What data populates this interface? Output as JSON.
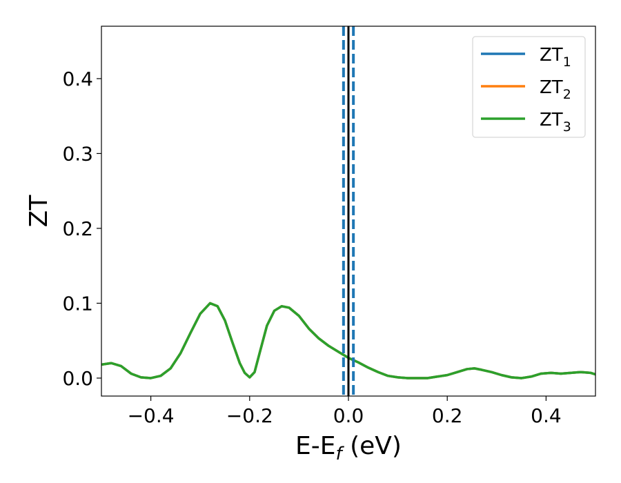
{
  "chart_data": {
    "type": "line",
    "xlabel": {
      "main": "E-E",
      "sub": "f",
      "suffix": " (eV)"
    },
    "ylabel": "ZT",
    "xlim": [
      -0.5,
      0.5
    ],
    "ylim": [
      -0.024,
      0.47
    ],
    "xticks": [
      -0.4,
      -0.2,
      0.0,
      0.2,
      0.4
    ],
    "xtick_labels": [
      "−0.4",
      "−0.2",
      "0.0",
      "0.2",
      "0.4"
    ],
    "yticks": [
      0.0,
      0.1,
      0.2,
      0.3,
      0.4
    ],
    "ytick_labels": [
      "0.0",
      "0.1",
      "0.2",
      "0.3",
      "0.4"
    ],
    "grid": false,
    "legend": "top-right",
    "series": [
      {
        "name": "ZT",
        "sub": "1",
        "color": "#1f77b4",
        "x": [
          -0.5,
          -0.48,
          -0.46,
          -0.44,
          -0.42,
          -0.4,
          -0.38,
          -0.36,
          -0.34,
          -0.32,
          -0.3,
          -0.28,
          -0.265,
          -0.25,
          -0.235,
          -0.22,
          -0.21,
          -0.2,
          -0.19,
          -0.18,
          -0.165,
          -0.15,
          -0.135,
          -0.12,
          -0.1,
          -0.08,
          -0.06,
          -0.04,
          -0.02,
          0.0,
          0.02,
          0.04,
          0.06,
          0.08,
          0.1,
          0.12,
          0.14,
          0.16,
          0.18,
          0.2,
          0.22,
          0.24,
          0.255,
          0.27,
          0.29,
          0.31,
          0.33,
          0.35,
          0.37,
          0.39,
          0.41,
          0.43,
          0.45,
          0.47,
          0.49,
          0.5
        ],
        "y": [
          0.018,
          0.02,
          0.016,
          0.006,
          0.001,
          0.0,
          0.003,
          0.013,
          0.033,
          0.06,
          0.086,
          0.1,
          0.096,
          0.077,
          0.048,
          0.02,
          0.007,
          0.001,
          0.008,
          0.033,
          0.07,
          0.09,
          0.096,
          0.094,
          0.083,
          0.066,
          0.053,
          0.043,
          0.035,
          0.027,
          0.021,
          0.014,
          0.008,
          0.003,
          0.001,
          0.0,
          0.0,
          0.0,
          0.002,
          0.004,
          0.008,
          0.012,
          0.013,
          0.011,
          0.008,
          0.004,
          0.001,
          0.0,
          0.002,
          0.006,
          0.007,
          0.006,
          0.007,
          0.008,
          0.007,
          0.005
        ]
      },
      {
        "name": "ZT",
        "sub": "2",
        "color": "#ff7f0e",
        "x": [
          -0.5,
          -0.48,
          -0.46,
          -0.44,
          -0.42,
          -0.4,
          -0.38,
          -0.36,
          -0.34,
          -0.32,
          -0.3,
          -0.28,
          -0.265,
          -0.25,
          -0.235,
          -0.22,
          -0.21,
          -0.2,
          -0.19,
          -0.18,
          -0.165,
          -0.15,
          -0.135,
          -0.12,
          -0.1,
          -0.08,
          -0.06,
          -0.04,
          -0.02,
          0.0,
          0.02,
          0.04,
          0.06,
          0.08,
          0.1,
          0.12,
          0.14,
          0.16,
          0.18,
          0.2,
          0.22,
          0.24,
          0.255,
          0.27,
          0.29,
          0.31,
          0.33,
          0.35,
          0.37,
          0.39,
          0.41,
          0.43,
          0.45,
          0.47,
          0.49,
          0.5
        ],
        "y": [
          0.018,
          0.02,
          0.016,
          0.006,
          0.001,
          0.0,
          0.003,
          0.013,
          0.033,
          0.06,
          0.086,
          0.1,
          0.096,
          0.077,
          0.048,
          0.02,
          0.007,
          0.001,
          0.008,
          0.033,
          0.07,
          0.09,
          0.096,
          0.094,
          0.083,
          0.066,
          0.053,
          0.043,
          0.035,
          0.027,
          0.021,
          0.014,
          0.008,
          0.003,
          0.001,
          0.0,
          0.0,
          0.0,
          0.002,
          0.004,
          0.008,
          0.012,
          0.013,
          0.011,
          0.008,
          0.004,
          0.001,
          0.0,
          0.002,
          0.006,
          0.007,
          0.006,
          0.007,
          0.008,
          0.007,
          0.005
        ]
      },
      {
        "name": "ZT",
        "sub": "3",
        "color": "#2ca02c",
        "x": [
          -0.5,
          -0.48,
          -0.46,
          -0.44,
          -0.42,
          -0.4,
          -0.38,
          -0.36,
          -0.34,
          -0.32,
          -0.3,
          -0.28,
          -0.265,
          -0.25,
          -0.235,
          -0.22,
          -0.21,
          -0.2,
          -0.19,
          -0.18,
          -0.165,
          -0.15,
          -0.135,
          -0.12,
          -0.1,
          -0.08,
          -0.06,
          -0.04,
          -0.02,
          0.0,
          0.02,
          0.04,
          0.06,
          0.08,
          0.1,
          0.12,
          0.14,
          0.16,
          0.18,
          0.2,
          0.22,
          0.24,
          0.255,
          0.27,
          0.29,
          0.31,
          0.33,
          0.35,
          0.37,
          0.39,
          0.41,
          0.43,
          0.45,
          0.47,
          0.49,
          0.5
        ],
        "y": [
          0.018,
          0.02,
          0.016,
          0.006,
          0.001,
          0.0,
          0.003,
          0.013,
          0.033,
          0.06,
          0.086,
          0.1,
          0.096,
          0.077,
          0.048,
          0.02,
          0.007,
          0.001,
          0.008,
          0.033,
          0.07,
          0.09,
          0.096,
          0.094,
          0.083,
          0.066,
          0.053,
          0.043,
          0.035,
          0.027,
          0.021,
          0.014,
          0.008,
          0.003,
          0.001,
          0.0,
          0.0,
          0.0,
          0.002,
          0.004,
          0.008,
          0.012,
          0.013,
          0.011,
          0.008,
          0.004,
          0.001,
          0.0,
          0.002,
          0.006,
          0.007,
          0.006,
          0.007,
          0.008,
          0.007,
          0.005
        ]
      }
    ],
    "vlines": [
      {
        "x": -0.01,
        "style": "dashed",
        "color": "#1f77b4"
      },
      {
        "x": 0.01,
        "style": "dashed",
        "color": "#1f77b4"
      },
      {
        "x": 0.0,
        "style": "solid",
        "color": "#000000"
      }
    ]
  }
}
